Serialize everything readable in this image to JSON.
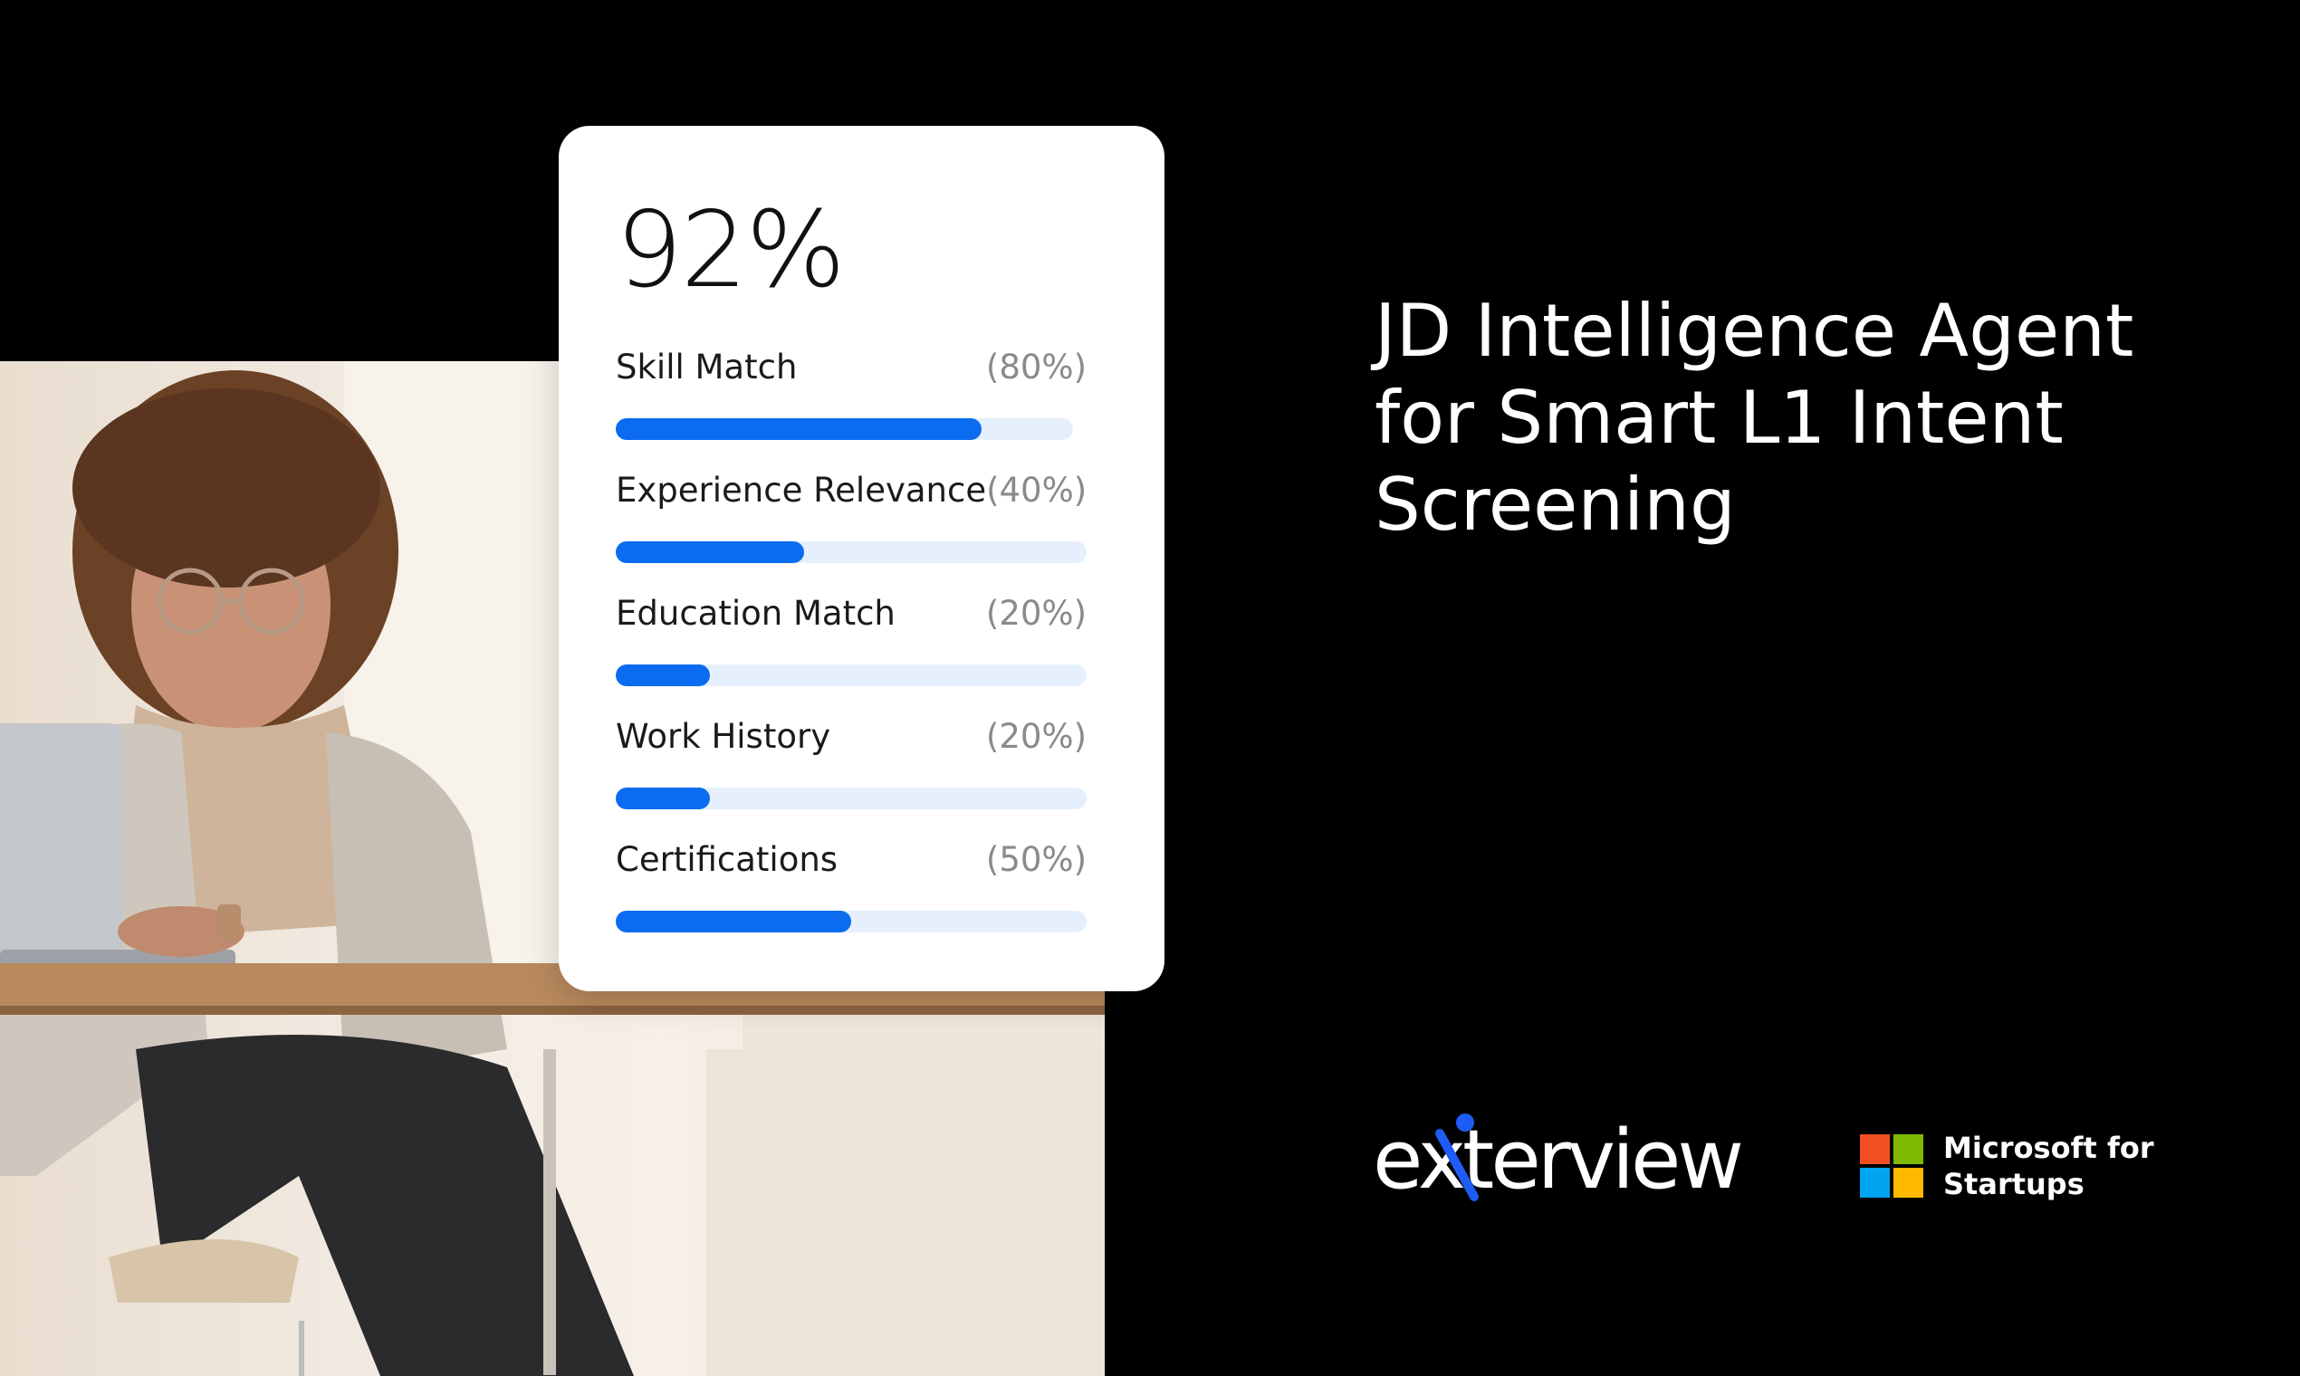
{
  "card": {
    "score": "92%",
    "metrics": [
      {
        "label": "Skill Match",
        "percent_text": "(80%)",
        "fill": 0.8
      },
      {
        "label": "Experience Relevance",
        "percent_text": "(40%)",
        "fill": 0.4
      },
      {
        "label": "Education Match",
        "percent_text": "(20%)",
        "fill": 0.2
      },
      {
        "label": "Work History",
        "percent_text": "(20%)",
        "fill": 0.2
      },
      {
        "label": "Certifications",
        "percent_text": "(50%)",
        "fill": 0.5
      }
    ]
  },
  "headline": {
    "lines": [
      "JD Intelligence Agent",
      "for Smart L1 Intent",
      "Screening"
    ]
  },
  "logos": {
    "brand_name": "exterview",
    "partner_lines": [
      "Microsoft for",
      "Startups"
    ],
    "partner_colors": [
      "#f25022",
      "#7fba00",
      "#00a4ef",
      "#ffb900"
    ],
    "brand_accent": "#1d5cf5"
  },
  "photo": {
    "subject": "woman-working-on-laptop-photo"
  }
}
